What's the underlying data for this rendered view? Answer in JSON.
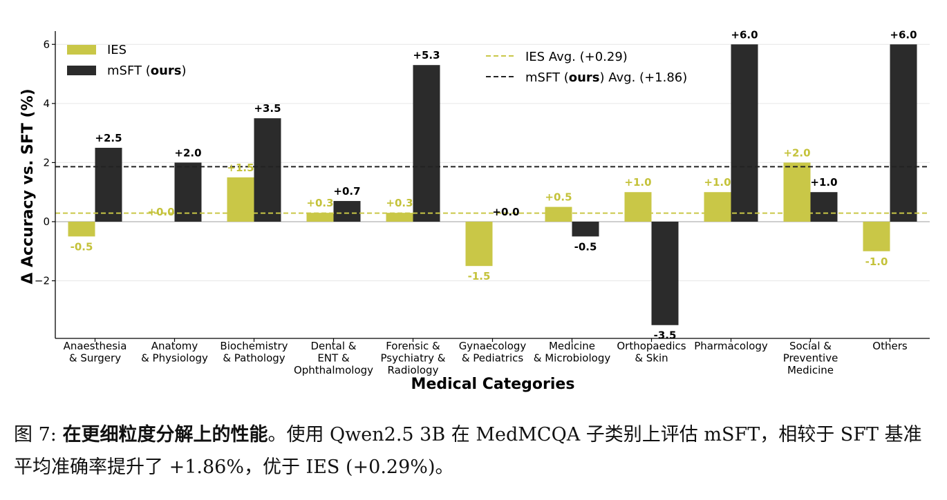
{
  "chart_data": {
    "type": "bar",
    "categories": [
      [
        "Anaesthesia",
        "& Surgery"
      ],
      [
        "Anatomy",
        "& Physiology"
      ],
      [
        "Biochemistry",
        "& Pathology"
      ],
      [
        "Dental &",
        "ENT &",
        "Ophthalmology"
      ],
      [
        "Forensic &",
        "Psychiatry &",
        "Radiology"
      ],
      [
        "Gynaecology",
        "& Pediatrics"
      ],
      [
        "Medicine",
        "& Microbiology"
      ],
      [
        "Orthopaedics",
        "& Skin"
      ],
      [
        "Pharmacology"
      ],
      [
        "Social &",
        "Preventive",
        "Medicine"
      ],
      [
        "Others"
      ]
    ],
    "series": [
      {
        "name": "IES",
        "color": "#c9c747",
        "label_color": "#c4c23a",
        "values": [
          -0.5,
          0.0,
          1.5,
          0.3,
          0.3,
          -1.5,
          0.5,
          1.0,
          1.0,
          2.0,
          -1.0
        ],
        "labels": [
          "-0.5",
          "+0.0",
          "+1.5",
          "+0.3",
          "+0.3",
          "-1.5",
          "+0.5",
          "+1.0",
          "+1.0",
          "+2.0",
          "-1.0"
        ]
      },
      {
        "name_prefix": "mSFT (",
        "name_bold": "ours",
        "name_suffix": ")",
        "color": "#2b2b2b",
        "label_color": "#000000",
        "values": [
          2.5,
          2.0,
          3.5,
          0.7,
          5.3,
          0.0,
          -0.5,
          -3.5,
          6.0,
          1.0,
          6.0
        ],
        "labels": [
          "+2.5",
          "+2.0",
          "+3.5",
          "+0.7",
          "+5.3",
          "+0.0",
          "-0.5",
          "-3.5",
          "+6.0",
          "+1.0",
          "+6.0"
        ]
      }
    ],
    "reference_lines": [
      {
        "value": 0.29,
        "color": "#c9c747",
        "style": "dashed",
        "label": "IES Avg. (+0.29)"
      },
      {
        "value": 1.86,
        "color": "#222222",
        "style": "dashed",
        "label_prefix": "mSFT (",
        "label_bold": "ours",
        "label_suffix": ") Avg. (+1.86)"
      }
    ],
    "xlabel": "Medical Categories",
    "ylabel": "Δ Accuracy vs. SFT (%)",
    "ylim": [
      -3.95,
      6.45
    ],
    "yticks": [
      -2,
      0,
      2,
      4,
      6
    ],
    "ytick_labels": [
      "−2",
      "0",
      "2",
      "4",
      "6"
    ],
    "grid": "horizontal",
    "legend_placement": "top-left",
    "reference_legend_placement": "top-center"
  },
  "caption": {
    "prefix": "图 7: ",
    "bold": "在更细粒度分解上的性能",
    "rest": "。使用 Qwen2.5 3B 在 MedMCQA 子类别上评估 mSFT，相较于 SFT 基准平均准确率提升了 +1.86%，优于 IES (+0.29%)。"
  }
}
